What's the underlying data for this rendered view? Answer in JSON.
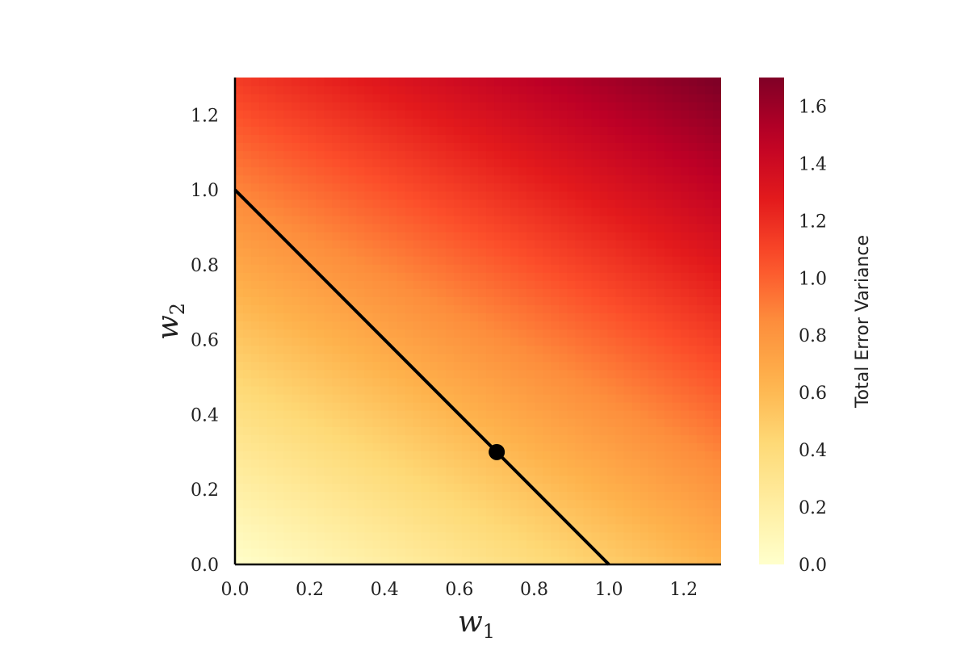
{
  "chart_data": {
    "type": "heatmap",
    "title": "",
    "xlabel": {
      "main": "w",
      "sub": "1"
    },
    "ylabel": {
      "main": "w",
      "sub": "2"
    },
    "xlim": [
      0.0,
      1.3
    ],
    "ylim": [
      0.0,
      1.3
    ],
    "x_ticks": [
      "0.0",
      "0.2",
      "0.4",
      "0.6",
      "0.8",
      "1.0",
      "1.2"
    ],
    "y_ticks": [
      "0.0",
      "0.2",
      "0.4",
      "0.6",
      "0.8",
      "1.0",
      "1.2"
    ],
    "x_tick_values": [
      0.0,
      0.2,
      0.4,
      0.6,
      0.8,
      1.0,
      1.2
    ],
    "y_tick_values": [
      0.0,
      0.2,
      0.4,
      0.6,
      0.8,
      1.0,
      1.2
    ],
    "heatmap": {
      "function": "error variance surface over w1, w2",
      "min_at": [
        0.15,
        0.05
      ],
      "corner_values": {
        "w1_0_w2_0": 0.05,
        "w1_1.3_w2_0": 0.65,
        "w1_0_w2_1.3": 1.15,
        "w1_1.3_w2_1.3": 1.7
      },
      "colormap": "YlOrRd",
      "colormap_stops": [
        "#ffffcc",
        "#ffeda0",
        "#fed976",
        "#feb24c",
        "#fd8d3c",
        "#fc4e2a",
        "#e31a1c",
        "#bd0026",
        "#800026"
      ]
    },
    "line": {
      "x": [
        0.0,
        1.0
      ],
      "y": [
        1.0,
        0.0
      ],
      "color": "#000000"
    },
    "point": {
      "x": 0.7,
      "y": 0.3,
      "color": "#000000"
    },
    "colorbar": {
      "label": "Total Error Variance",
      "range": [
        0.0,
        1.7
      ],
      "ticks": [
        "0.0",
        "0.2",
        "0.4",
        "0.6",
        "0.8",
        "1.0",
        "1.2",
        "1.4",
        "1.6"
      ],
      "tick_values": [
        0.0,
        0.2,
        0.4,
        0.6,
        0.8,
        1.0,
        1.2,
        1.4,
        1.6
      ]
    }
  }
}
